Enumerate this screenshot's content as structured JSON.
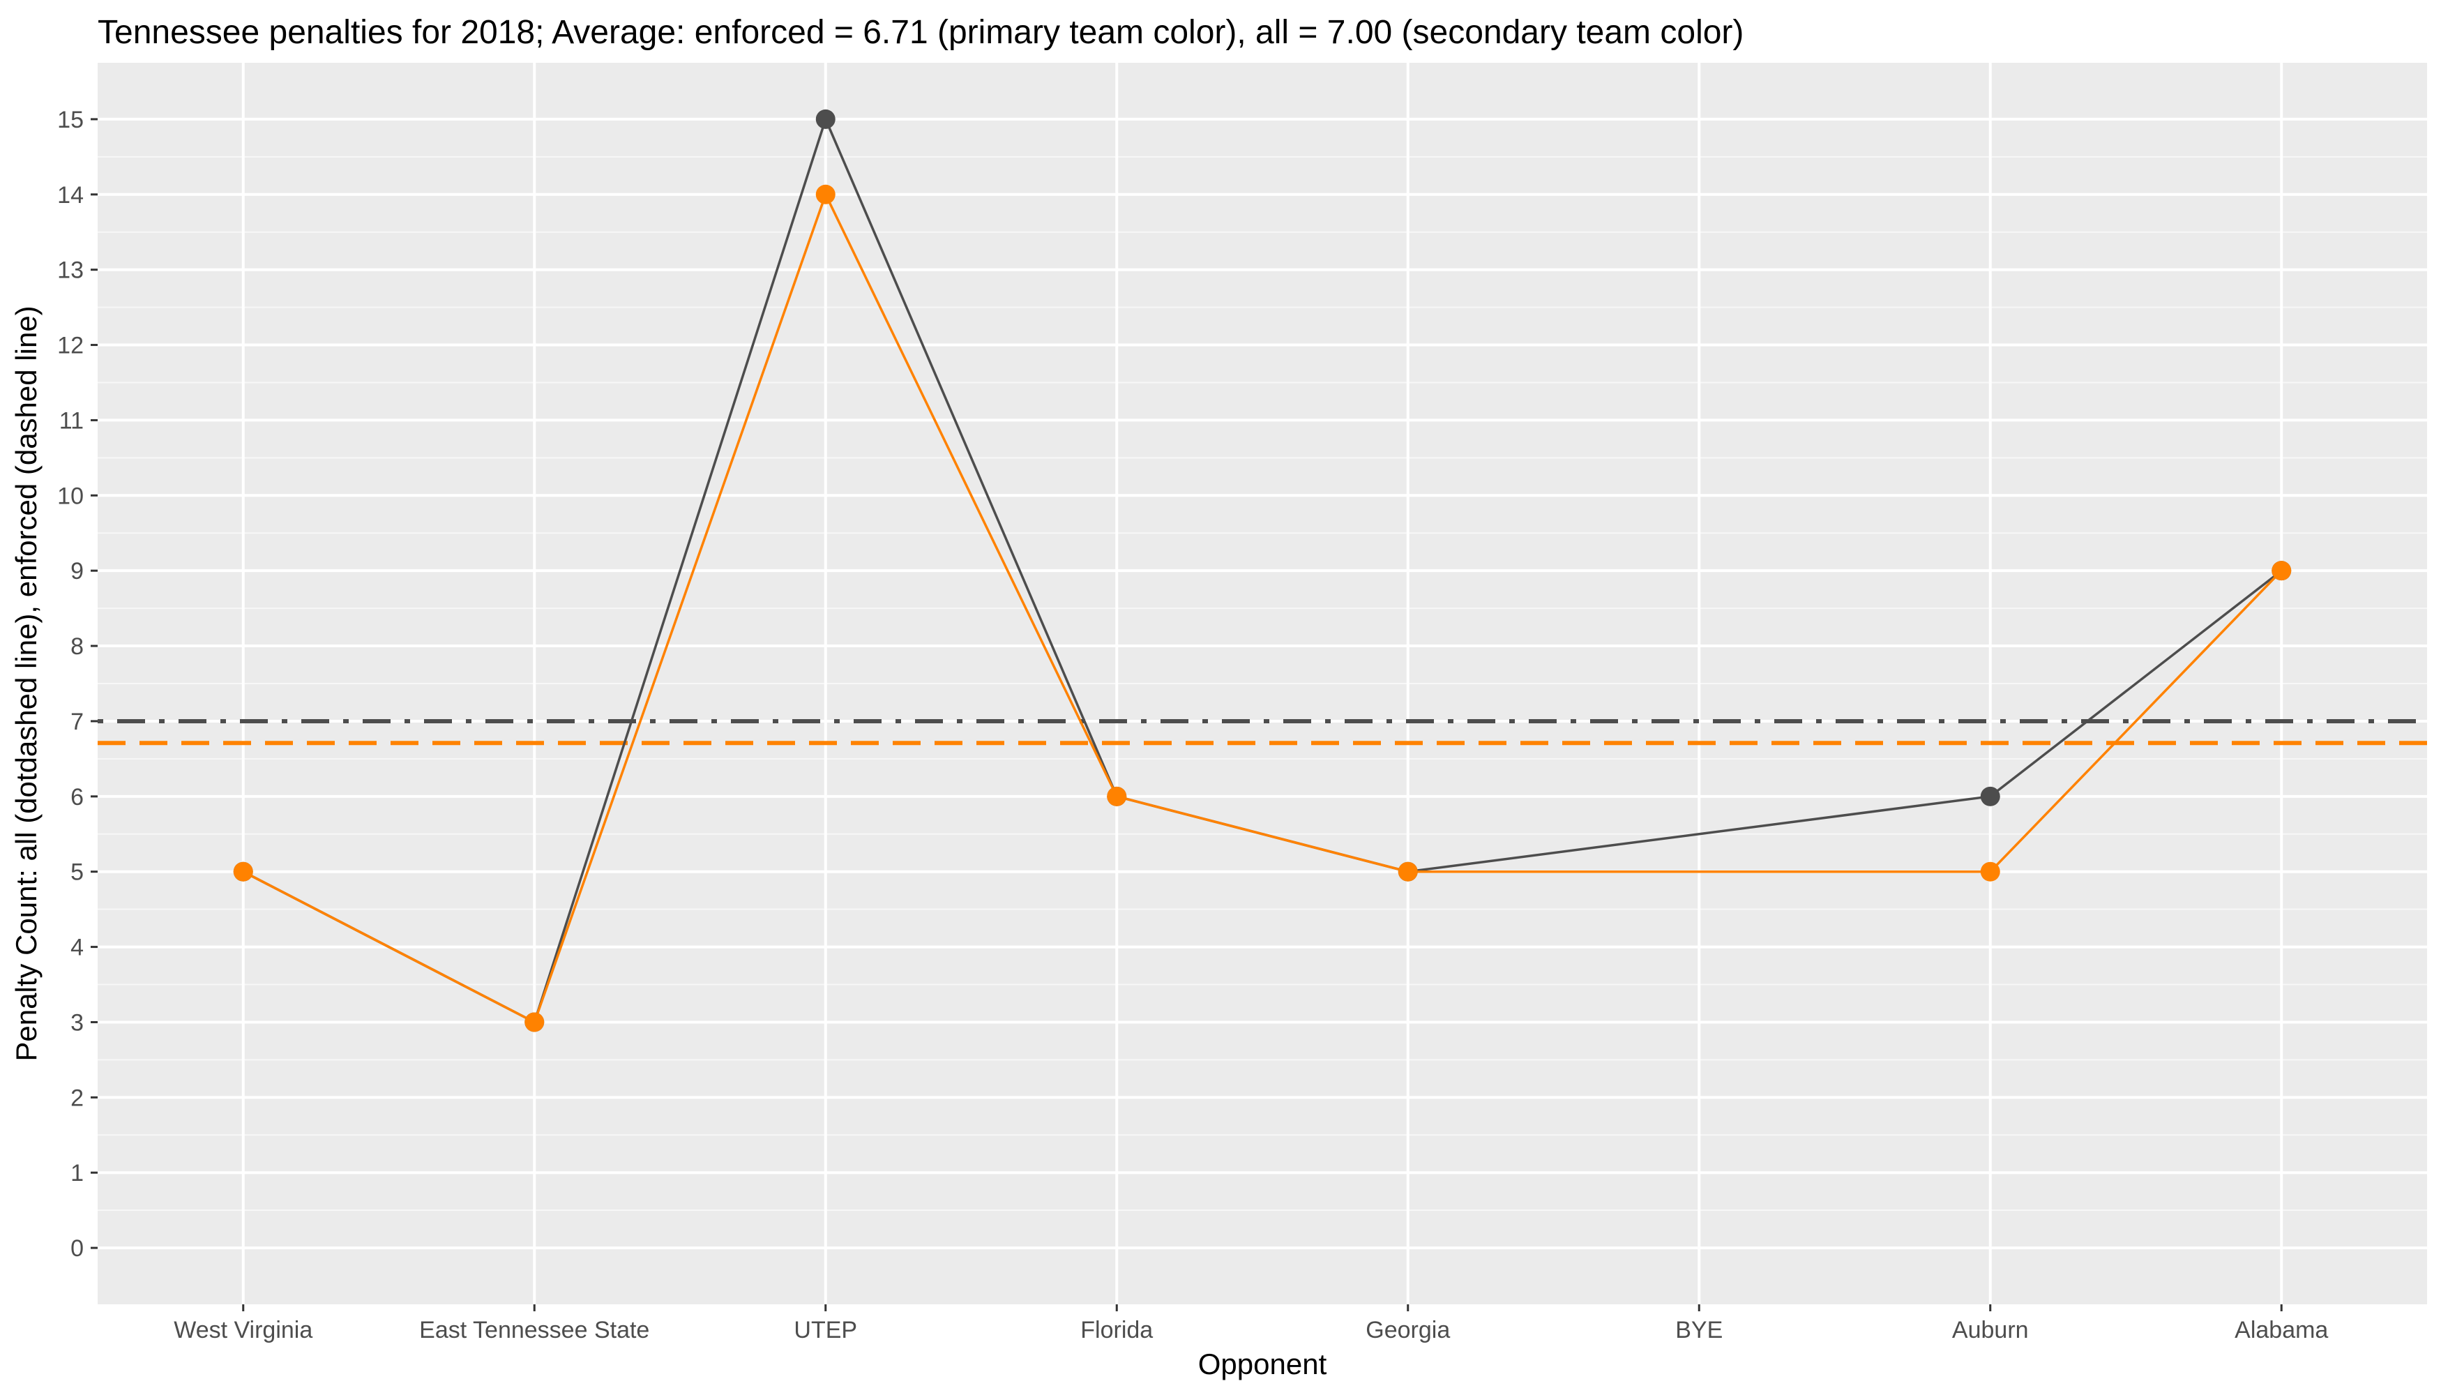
{
  "chart_data": {
    "type": "line",
    "title": "Tennessee penalties for 2018; Average: enforced = 6.71 (primary team color), all = 7.00 (secondary team color)",
    "xlabel": "Opponent",
    "ylabel": "Penalty Count: all (dotdashed line), enforced (dashed line)",
    "categories": [
      "West Virginia",
      "East Tennessee State",
      "UTEP",
      "Florida",
      "Georgia",
      "BYE",
      "Auburn",
      "Alabama"
    ],
    "yticks": [
      0,
      1,
      2,
      3,
      4,
      5,
      6,
      7,
      8,
      9,
      10,
      11,
      12,
      13,
      14,
      15
    ],
    "ylim": [
      -0.75,
      15.75
    ],
    "grid": true,
    "series": [
      {
        "key": "all",
        "color": "#4d4d4d",
        "values": [
          5,
          3,
          15,
          6,
          5,
          null,
          6,
          9
        ]
      },
      {
        "key": "enforced",
        "color": "#ff8200",
        "values": [
          5,
          3,
          14,
          6,
          5,
          null,
          5,
          9
        ]
      }
    ],
    "hlines": [
      {
        "key": "all_average",
        "value": 7.0,
        "style": "dotdash",
        "color": "#4d4d4d"
      },
      {
        "key": "enforced_average",
        "value": 6.71,
        "style": "dashed",
        "color": "#ff8200"
      }
    ]
  }
}
